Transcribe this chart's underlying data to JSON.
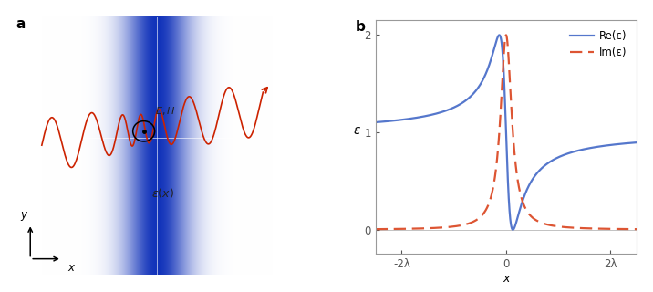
{
  "panel_a_label": "a",
  "panel_b_label": "b",
  "fig_width": 7.16,
  "fig_height": 3.2,
  "dpi": 100,
  "plot_b": {
    "xlim": [
      -2.5,
      2.5
    ],
    "ylim": [
      -0.25,
      2.15
    ],
    "yticks": [
      0,
      1,
      2
    ],
    "xticks": [
      -2,
      0,
      2
    ],
    "xtick_labels": [
      "-2λ",
      "0",
      "2λ"
    ],
    "xlabel": "x",
    "ylabel": "ε",
    "re_color": "#5577cc",
    "im_color": "#dd5533",
    "legend_re": "Re(ε)",
    "legend_im": "Im(ε)",
    "line_width": 1.6
  }
}
